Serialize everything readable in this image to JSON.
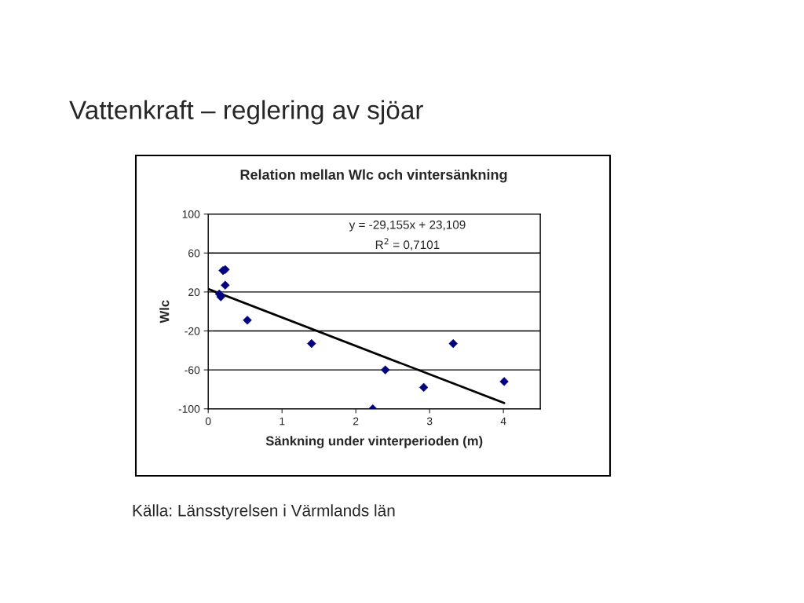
{
  "chart_data": {
    "type": "scatter",
    "title": "Relation mellan Wlc och vintersänkning",
    "xlabel": "Sänkning under vinterperioden (m)",
    "ylabel": "Wlc",
    "annotations": [
      "Vattenkraft – reglering av sjöar",
      "y = -29,155x + 23,109",
      "R$^{2}$ = 0,7101",
      "Källa: Länsstyrelsen i Värmlands län"
    ],
    "series": [
      {
        "color": "#000080",
        "marker": "diamond",
        "x": [
          0.15,
          0.17,
          0.2,
          0.23,
          0.23,
          0.53,
          1.4,
          2.23,
          2.4,
          2.92,
          3.32,
          4.01
        ],
        "values": [
          18,
          15,
          42,
          43,
          27,
          -9,
          -33,
          -100,
          -60,
          -78,
          -33,
          -72
        ]
      },
      {
        "type": "line",
        "color": "#000000",
        "marker": "none",
        "x": [
          0,
          4.01
        ],
        "values": [
          23,
          -94
        ]
      }
    ],
    "xlim": [
      0,
      4.5
    ],
    "xticks": [
      0,
      1,
      2,
      3,
      4
    ],
    "ylim": [
      -100,
      100
    ],
    "yticks": [
      -100,
      -60,
      -20,
      20,
      60,
      100
    ],
    "grid": "y",
    "legend": false
  }
}
